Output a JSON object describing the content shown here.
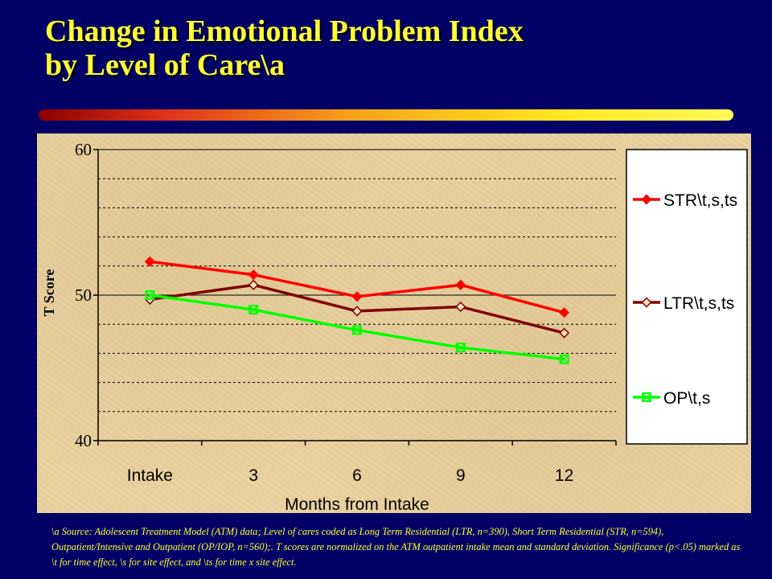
{
  "title_lines": [
    "Change in Emotional Problem Index",
    "by Level of Care\\a"
  ],
  "footnote": "\\a Source:  Adolescent Treatment Model (ATM) data; Level of cares coded as Long Term Residential (LTR, n=390), Short Term Residential (STR, n=594), Outpatient/Intensive  and Outpatient (OP/IOP, n=560);.  T scores are normalized on the ATM outpatient intake mean and standard deviation.  Significance (p<.05) marked as  \\t for time effect, \\s for site effect, and \\ts for time x site effect.",
  "colors": {
    "background": "#000066",
    "title": "#ffff33",
    "panel": "#e8d2a0",
    "str": "#ff0000",
    "ltr": "#800000",
    "op": "#00ff00"
  },
  "chart_data": {
    "type": "line",
    "title": "",
    "xlabel": "Months from Intake",
    "ylabel": "T Score",
    "categories": [
      "Intake",
      "3",
      "6",
      "9",
      "12"
    ],
    "ylim": [
      40,
      60
    ],
    "yticks": [
      40,
      50,
      60
    ],
    "grid": true,
    "legend_position": "right",
    "series": [
      {
        "name": "STR\\t,s,ts",
        "color": "#ff0000",
        "marker": "diamond-filled",
        "values": [
          52.3,
          51.4,
          49.9,
          50.7,
          48.8
        ]
      },
      {
        "name": "LTR\\t,s,ts",
        "color": "#800000",
        "marker": "diamond-open",
        "values": [
          49.7,
          50.7,
          48.9,
          49.2,
          47.4
        ]
      },
      {
        "name": "OP\\t,s",
        "color": "#00ff00",
        "marker": "square-x",
        "values": [
          50.0,
          49.0,
          47.6,
          46.4,
          45.6
        ]
      }
    ]
  }
}
